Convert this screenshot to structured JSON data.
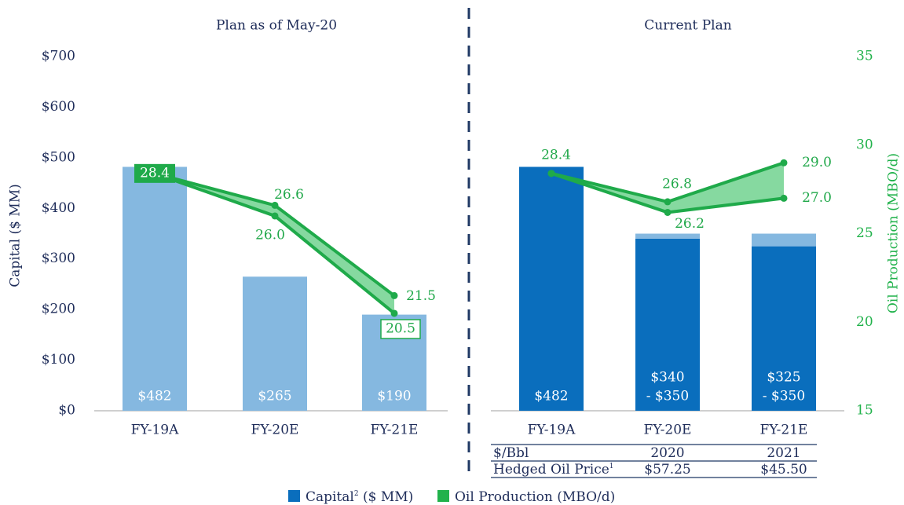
{
  "chart_data": [
    {
      "type": "bar-line-range",
      "title": "Plan as of May-20",
      "categories": [
        "FY-19A",
        "FY-20E",
        "FY-21E"
      ],
      "capital_low": [
        482,
        265,
        190
      ],
      "capital_low_labels": [
        "$482",
        "$265",
        "$190"
      ],
      "bar_color": "#85b8e0",
      "production_high": [
        28.4,
        26.6,
        21.5
      ],
      "production_high_labels": [
        "28.4",
        "26.6",
        "21.5"
      ],
      "production_low": [
        28.4,
        26.0,
        20.5
      ],
      "production_low_labels": [
        null,
        "26.0",
        "20.5"
      ],
      "line_color": "#1faa4a",
      "fill_color": "#86d9a0",
      "ylabel": "Capital ($ MM)",
      "ylim": [
        0,
        700
      ],
      "yticks": [
        {
          "value": 0,
          "label": "$0"
        },
        {
          "value": 100,
          "label": "$100"
        },
        {
          "value": 200,
          "label": "$200"
        },
        {
          "value": 300,
          "label": "$300"
        },
        {
          "value": 400,
          "label": "$400"
        },
        {
          "value": 500,
          "label": "$500"
        },
        {
          "value": 600,
          "label": "$600"
        },
        {
          "value": 700,
          "label": "$700"
        }
      ]
    },
    {
      "type": "bar-line-range",
      "title": "Current Plan",
      "categories": [
        "FY-19A",
        "FY-20E",
        "FY-21E"
      ],
      "capital_low": [
        482,
        340,
        325
      ],
      "capital_low_labels": [
        "$482",
        "$340",
        "$325"
      ],
      "capital_high": [
        482,
        350,
        350
      ],
      "capital_high_labels": [
        null,
        "- $350",
        "- $350"
      ],
      "bar_color": "#0a6ebd",
      "range_color": "#85b8e0",
      "production_high": [
        28.4,
        26.8,
        29.0
      ],
      "production_high_labels": [
        "28.4",
        "26.8",
        "29.0"
      ],
      "production_low": [
        28.4,
        26.2,
        27.0
      ],
      "production_low_labels": [
        null,
        "26.2",
        "27.0"
      ],
      "line_color": "#1faa4a",
      "fill_color": "#86d9a0",
      "y2label": "Oil Production (MBO/d)",
      "y2lim": [
        15,
        35
      ],
      "y2ticks": [
        15,
        20,
        25,
        30,
        35
      ]
    }
  ],
  "table": {
    "rows": [
      [
        "$/Bbl",
        "2020",
        "2021"
      ],
      [
        "Hedged Oil Price",
        "$57.25",
        "$45.50"
      ]
    ],
    "row_1_superscript": "1"
  },
  "legend": [
    {
      "label": "Capital",
      "superscript": "2",
      "suffix": " ($ MM)",
      "color": "#0a6ebd"
    },
    {
      "label": "Oil Production (MBO/d)",
      "color": "#21b24b"
    }
  ]
}
